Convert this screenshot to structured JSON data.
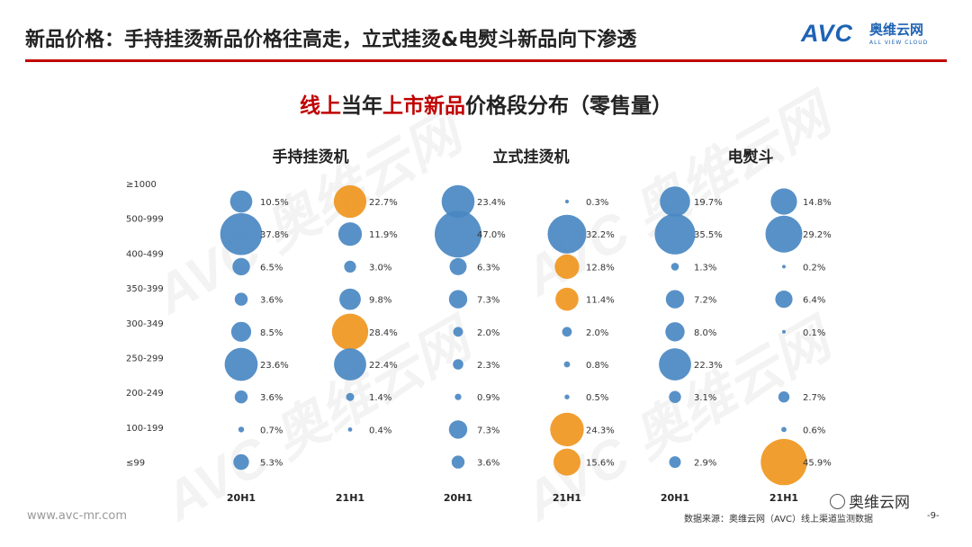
{
  "header": {
    "title": "新品价格：手持挂烫新品价格往高走，立式挂烫&电熨斗新品向下渗透",
    "logo_mark": "AVC",
    "logo_cn": "奥维云网",
    "logo_en": "ALL VIEW CLOUD"
  },
  "chart_title": {
    "part1": "线上",
    "part2": "当年",
    "part3": "上市新品",
    "part4": "价格段分布（零售量）"
  },
  "watermark": "AVC 奥维云网",
  "footer": {
    "url": "www.avc-mr.com",
    "source": "数据来源：奥维云网（AVC）线上渠道监测数据",
    "page": "-9-",
    "wechat": "奥维云网"
  },
  "colors": {
    "blue": "#4a88c2",
    "orange": "#f0961e",
    "accent": "#c00000"
  },
  "chart_data": {
    "type": "bubble",
    "title": "线上当年上市新品价格段分布（零售量）",
    "price_segments": [
      "≥1000",
      "500-999",
      "400-499",
      "350-399",
      "300-349",
      "250-299",
      "200-249",
      "100-199",
      "≤99"
    ],
    "groups": [
      {
        "name": "手持挂烫机",
        "series": [
          {
            "period": "20H1",
            "values": [
              10.5,
              37.8,
              6.5,
              3.6,
              8.5,
              23.6,
              3.6,
              0.7,
              5.3
            ],
            "highlight": []
          },
          {
            "period": "21H1",
            "values": [
              22.7,
              11.9,
              3.0,
              9.8,
              28.4,
              22.4,
              1.4,
              0.4,
              null
            ],
            "highlight": [
              0,
              4
            ]
          }
        ]
      },
      {
        "name": "立式挂烫机",
        "series": [
          {
            "period": "20H1",
            "values": [
              23.4,
              47.0,
              6.3,
              7.3,
              2.0,
              2.3,
              0.9,
              7.3,
              3.6
            ],
            "highlight": []
          },
          {
            "period": "21H1",
            "values": [
              0.3,
              32.2,
              12.8,
              11.4,
              2.0,
              0.8,
              0.5,
              24.3,
              15.6
            ],
            "highlight": [
              2,
              3,
              7,
              8
            ]
          }
        ]
      },
      {
        "name": "电熨斗",
        "series": [
          {
            "period": "20H1",
            "values": [
              19.7,
              35.5,
              1.3,
              7.2,
              8.0,
              22.3,
              3.1,
              null,
              2.9
            ],
            "highlight": []
          },
          {
            "period": "21H1",
            "values": [
              14.8,
              29.2,
              0.2,
              6.4,
              0.1,
              null,
              2.7,
              0.6,
              45.9
            ],
            "highlight": [
              8
            ]
          }
        ]
      }
    ],
    "unit": "%"
  }
}
